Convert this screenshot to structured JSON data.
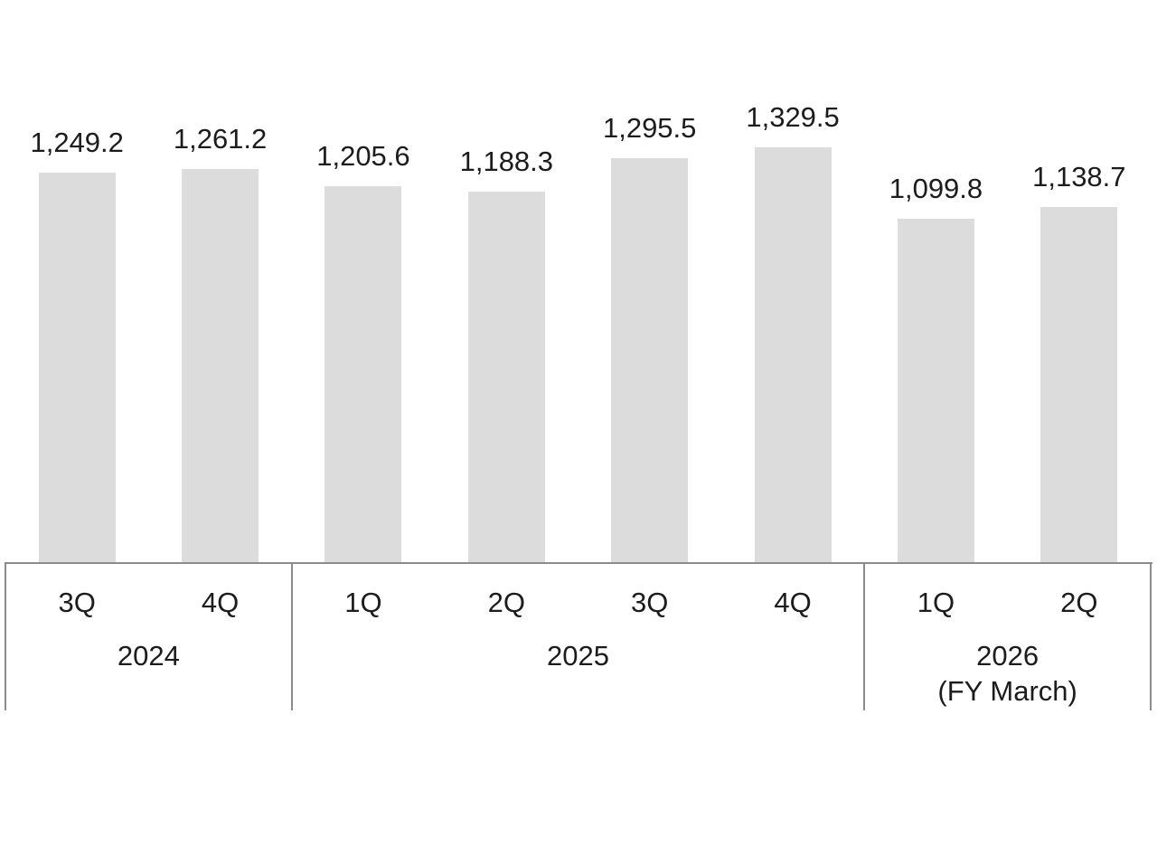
{
  "chart_data": {
    "type": "bar",
    "categories": [
      "3Q",
      "4Q",
      "1Q",
      "2Q",
      "3Q",
      "4Q",
      "1Q",
      "2Q"
    ],
    "values": [
      1249.2,
      1261.2,
      1205.6,
      1188.3,
      1295.5,
      1329.5,
      1099.8,
      1138.7
    ],
    "data_labels": [
      "1,249.2",
      "1,261.2",
      "1,205.6",
      "1,188.3",
      "1,295.5",
      "1,329.5",
      "1,099.8",
      "1,138.7"
    ],
    "year_groups": [
      {
        "label": "2024",
        "sublabel": "",
        "start": 0,
        "end": 2
      },
      {
        "label": "2025",
        "sublabel": "",
        "start": 2,
        "end": 6
      },
      {
        "label": "2026",
        "sublabel": "(FY March)",
        "start": 6,
        "end": 8
      }
    ],
    "title": "",
    "xlabel": "",
    "ylabel": "",
    "ylim": [
      0,
      1400
    ],
    "grid": false,
    "legend": false,
    "data_labels_shown": true,
    "bar_color": "#dcdcdc",
    "axis_line_color": "#8c8c8c",
    "text_color": "#1c1c1c",
    "background_color": "#ffffff"
  }
}
